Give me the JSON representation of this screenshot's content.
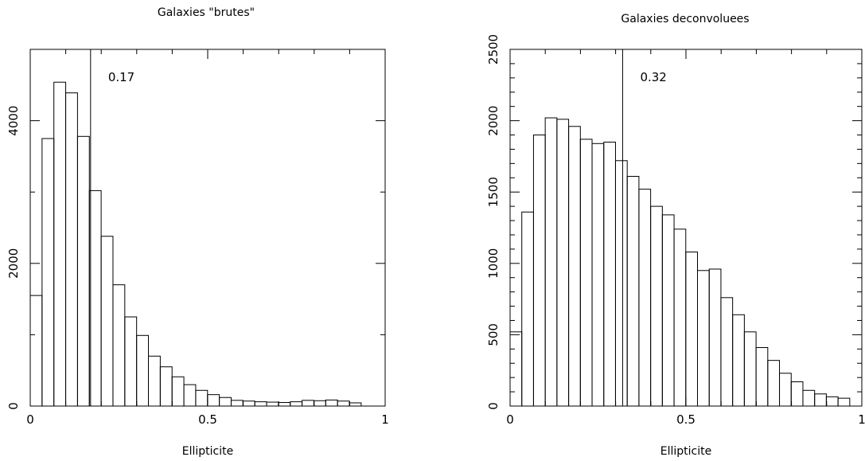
{
  "chart_data": [
    {
      "type": "bar",
      "title": "Galaxies \"brutes\"",
      "xlabel": "Ellipticite",
      "ylabel": "",
      "xlim": [
        0,
        1
      ],
      "ylim": [
        0,
        5000
      ],
      "xticks": [
        0,
        0.5,
        1
      ],
      "xtick_labels": [
        "0",
        "0.5",
        "1"
      ],
      "yticks": [
        0,
        2000,
        4000
      ],
      "ytick_labels": [
        "0",
        "2000",
        "4000"
      ],
      "grid": false,
      "bin_width": 0.0333,
      "values": [
        1550,
        3750,
        4540,
        4390,
        3780,
        3020,
        2380,
        1700,
        1250,
        990,
        700,
        550,
        410,
        300,
        220,
        160,
        120,
        80,
        70,
        60,
        55,
        50,
        60,
        80,
        75,
        85,
        70,
        45
      ],
      "annotation": {
        "x": 0.17,
        "label": "0.17"
      }
    },
    {
      "type": "bar",
      "title": "Galaxies deconvoluees",
      "xlabel": "Ellipticite",
      "ylabel": "",
      "xlim": [
        0,
        1
      ],
      "ylim": [
        0,
        2500
      ],
      "xticks": [
        0,
        0.5,
        1
      ],
      "xtick_labels": [
        "0",
        "0.5",
        "1"
      ],
      "yticks": [
        0,
        500,
        1000,
        1500,
        2000,
        2500
      ],
      "ytick_labels": [
        "0",
        "500",
        "1000",
        "1500",
        "2000",
        "2500"
      ],
      "grid": false,
      "bin_width": 0.0333,
      "values": [
        520,
        1360,
        1900,
        2020,
        2010,
        1960,
        1870,
        1840,
        1850,
        1720,
        1610,
        1520,
        1400,
        1340,
        1240,
        1080,
        950,
        960,
        760,
        640,
        520,
        410,
        320,
        230,
        170,
        110,
        85,
        65,
        55
      ],
      "annotation": {
        "x": 0.32,
        "label": "0.32"
      }
    }
  ]
}
